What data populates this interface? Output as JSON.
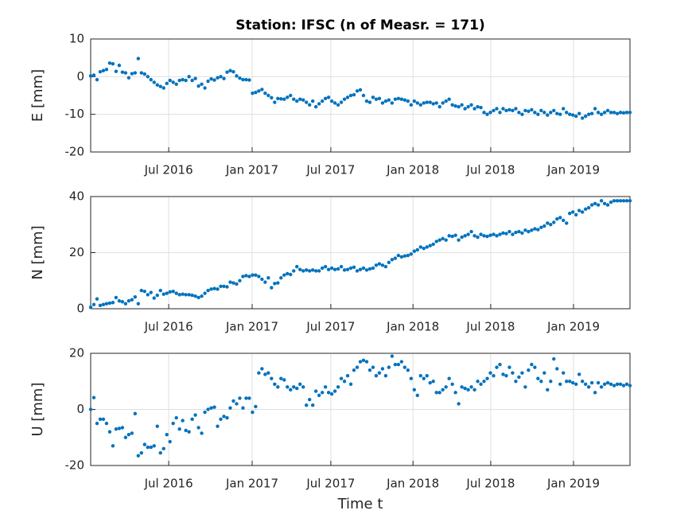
{
  "chart_data": [
    {
      "type": "scatter",
      "title": "Station: IFSC (n of Measr. = 171)",
      "y_label": "E [mm]",
      "color": "#0072bd",
      "grid": true,
      "x": [
        0,
        1,
        2,
        3,
        4,
        5,
        6,
        7,
        8,
        9,
        10,
        11,
        12,
        13,
        14,
        15,
        16,
        17,
        18,
        19,
        20,
        21,
        22,
        23,
        24,
        25,
        26,
        27,
        28,
        29,
        30,
        31,
        32,
        33,
        34,
        35,
        36,
        37,
        38,
        39,
        40,
        41,
        42,
        43,
        44,
        45,
        46,
        47,
        48,
        49,
        50,
        51,
        52,
        53,
        54,
        55,
        56,
        57,
        58,
        59,
        60,
        61,
        62,
        63,
        64,
        65,
        66,
        67,
        68,
        69,
        70,
        71,
        72,
        73,
        74,
        75,
        76,
        77,
        78,
        79,
        80,
        81,
        82,
        83,
        84,
        85,
        86,
        87,
        88,
        89,
        90,
        91,
        92,
        93,
        94,
        95,
        96,
        97,
        98,
        99,
        100,
        101,
        102,
        103,
        104,
        105,
        106,
        107,
        108,
        109,
        110,
        111,
        112,
        113,
        114,
        115,
        116,
        117,
        118,
        119,
        120,
        121,
        122,
        123,
        124,
        125,
        126,
        127,
        128,
        129,
        130,
        131,
        132,
        133,
        134,
        135,
        136,
        137,
        138,
        139,
        140,
        141,
        142,
        143,
        144,
        145,
        146,
        147,
        148,
        149,
        150,
        151,
        152,
        153,
        154,
        155,
        156,
        157,
        158,
        159,
        160,
        161,
        162,
        163,
        164,
        165,
        166,
        167,
        168,
        169,
        170
      ],
      "values": [
        0.2,
        0.4,
        -0.8,
        1.3,
        1.6,
        1.9,
        3.6,
        3.4,
        1.4,
        3.0,
        1.2,
        1.0,
        -0.3,
        0.8,
        1.0,
        4.8,
        1.0,
        0.7,
        0.0,
        -0.8,
        -1.5,
        -2.2,
        -2.6,
        -3.0,
        -1.8,
        -1.0,
        -1.5,
        -2.0,
        -1.0,
        -0.8,
        -1.0,
        0.0,
        -1.0,
        -0.5,
        -2.5,
        -2.0,
        -3.0,
        -1.2,
        -0.6,
        -0.9,
        -0.3,
        0.0,
        -0.5,
        1.2,
        1.6,
        1.3,
        0.2,
        -0.4,
        -0.8,
        -0.8,
        -0.9,
        -4.4,
        -4.2,
        -3.8,
        -3.4,
        -4.4,
        -5.0,
        -5.6,
        -6.8,
        -5.8,
        -5.9,
        -6.0,
        -5.5,
        -5.0,
        -6.0,
        -6.5,
        -6.0,
        -6.2,
        -6.8,
        -7.5,
        -6.5,
        -8.0,
        -7.2,
        -6.5,
        -5.8,
        -5.5,
        -6.5,
        -7.0,
        -7.5,
        -6.8,
        -6.0,
        -5.5,
        -5.0,
        -4.8,
        -3.8,
        -3.5,
        -5.0,
        -6.5,
        -6.8,
        -5.5,
        -6.0,
        -5.8,
        -7.0,
        -6.5,
        -6.2,
        -7.0,
        -6.0,
        -5.8,
        -6.0,
        -6.2,
        -6.5,
        -7.5,
        -6.5,
        -7.0,
        -7.5,
        -7.0,
        -6.8,
        -6.8,
        -7.2,
        -7.0,
        -8.0,
        -7.0,
        -6.5,
        -6.0,
        -7.5,
        -7.8,
        -8.0,
        -7.5,
        -8.5,
        -8.0,
        -7.5,
        -8.5,
        -8.0,
        -8.2,
        -9.5,
        -10.0,
        -9.5,
        -9.0,
        -8.5,
        -9.5,
        -8.5,
        -9.0,
        -8.8,
        -9.0,
        -8.5,
        -9.5,
        -10.0,
        -9.0,
        -9.2,
        -8.8,
        -9.5,
        -10.0,
        -9.0,
        -9.5,
        -10.2,
        -9.5,
        -9.0,
        -9.8,
        -10.0,
        -8.5,
        -9.5,
        -10.0,
        -10.2,
        -10.5,
        -9.8,
        -11.0,
        -10.5,
        -10.0,
        -9.8,
        -8.5,
        -9.5,
        -10.0,
        -9.5,
        -9.0,
        -9.5,
        -9.5,
        -9.8,
        -9.5,
        -9.6,
        -9.5,
        -9.5
      ],
      "xlim": [
        0,
        170
      ],
      "ylim": [
        -20,
        10
      ],
      "yticks": [
        -20,
        -10,
        0,
        10
      ],
      "xticks": [
        {
          "value": 24.6,
          "label": "Jul 2016"
        },
        {
          "value": 50.9,
          "label": "Jan 2017"
        },
        {
          "value": 75.7,
          "label": "Jul 2017"
        },
        {
          "value": 101.6,
          "label": "Jan 2018"
        },
        {
          "value": 126.1,
          "label": "Jul 2018"
        },
        {
          "value": 152.2,
          "label": "Jan 2019"
        }
      ]
    },
    {
      "type": "scatter",
      "y_label": "N [mm]",
      "color": "#0072bd",
      "grid": true,
      "x": [
        0,
        1,
        2,
        3,
        4,
        5,
        6,
        7,
        8,
        9,
        10,
        11,
        12,
        13,
        14,
        15,
        16,
        17,
        18,
        19,
        20,
        21,
        22,
        23,
        24,
        25,
        26,
        27,
        28,
        29,
        30,
        31,
        32,
        33,
        34,
        35,
        36,
        37,
        38,
        39,
        40,
        41,
        42,
        43,
        44,
        45,
        46,
        47,
        48,
        49,
        50,
        51,
        52,
        53,
        54,
        55,
        56,
        57,
        58,
        59,
        60,
        61,
        62,
        63,
        64,
        65,
        66,
        67,
        68,
        69,
        70,
        71,
        72,
        73,
        74,
        75,
        76,
        77,
        78,
        79,
        80,
        81,
        82,
        83,
        84,
        85,
        86,
        87,
        88,
        89,
        90,
        91,
        92,
        93,
        94,
        95,
        96,
        97,
        98,
        99,
        100,
        101,
        102,
        103,
        104,
        105,
        106,
        107,
        108,
        109,
        110,
        111,
        112,
        113,
        114,
        115,
        116,
        117,
        118,
        119,
        120,
        121,
        122,
        123,
        124,
        125,
        126,
        127,
        128,
        129,
        130,
        131,
        132,
        133,
        134,
        135,
        136,
        137,
        138,
        139,
        140,
        141,
        142,
        143,
        144,
        145,
        146,
        147,
        148,
        149,
        150,
        151,
        152,
        153,
        154,
        155,
        156,
        157,
        158,
        159,
        160,
        161,
        162,
        163,
        164,
        165,
        166,
        167,
        168,
        169,
        170
      ],
      "values": [
        0.5,
        1.5,
        3.5,
        1.2,
        1.5,
        1.8,
        2.0,
        2.2,
        4.0,
        2.8,
        2.5,
        1.8,
        2.8,
        3.2,
        4.2,
        1.8,
        6.5,
        6.2,
        5.0,
        5.8,
        3.8,
        4.8,
        6.5,
        5.2,
        5.5,
        6.0,
        6.2,
        5.5,
        5.0,
        5.2,
        5.0,
        5.0,
        4.8,
        4.5,
        4.0,
        4.5,
        5.5,
        6.5,
        7.0,
        7.2,
        7.0,
        8.0,
        8.0,
        7.8,
        9.5,
        9.2,
        8.8,
        10.0,
        11.5,
        11.8,
        11.5,
        12.0,
        12.0,
        11.5,
        10.5,
        9.5,
        11.0,
        7.5,
        9.0,
        9.2,
        11.0,
        12.0,
        12.5,
        12.2,
        13.5,
        15.0,
        14.0,
        13.5,
        13.8,
        13.5,
        13.8,
        13.5,
        13.5,
        14.5,
        15.0,
        14.0,
        14.5,
        14.0,
        14.2,
        15.0,
        13.8,
        14.0,
        14.5,
        14.8,
        13.5,
        14.0,
        14.5,
        13.8,
        14.2,
        14.5,
        15.5,
        16.0,
        15.5,
        15.0,
        16.5,
        17.5,
        18.0,
        19.0,
        18.5,
        18.8,
        19.0,
        19.5,
        20.5,
        21.0,
        22.0,
        21.5,
        22.0,
        22.5,
        23.0,
        24.0,
        24.5,
        25.0,
        24.5,
        26.0,
        25.8,
        26.2,
        24.5,
        25.5,
        26.0,
        26.5,
        27.5,
        26.0,
        25.5,
        26.5,
        26.0,
        25.8,
        26.2,
        26.5,
        26.0,
        26.5,
        27.0,
        26.8,
        27.5,
        26.5,
        27.2,
        27.5,
        27.0,
        28.0,
        27.5,
        28.0,
        28.5,
        28.2,
        29.0,
        29.5,
        30.5,
        30.0,
        30.8,
        32.0,
        32.5,
        31.5,
        30.5,
        34.0,
        34.5,
        33.5,
        35.0,
        34.5,
        35.5,
        36.0,
        37.0,
        37.5,
        37.0,
        38.5,
        37.5,
        37.0,
        38.0,
        38.5,
        38.5,
        38.5,
        38.5,
        38.5,
        38.5
      ],
      "xlim": [
        0,
        170
      ],
      "ylim": [
        0,
        40
      ],
      "yticks": [
        0,
        20,
        40
      ],
      "xticks": [
        {
          "value": 24.6,
          "label": "Jul 2016"
        },
        {
          "value": 50.9,
          "label": "Jan 2017"
        },
        {
          "value": 75.7,
          "label": "Jul 2017"
        },
        {
          "value": 101.6,
          "label": "Jan 2018"
        },
        {
          "value": 126.1,
          "label": "Jul 2018"
        },
        {
          "value": 152.2,
          "label": "Jan 2019"
        }
      ]
    },
    {
      "type": "scatter",
      "y_label": "U [mm]",
      "x_label": "Time t",
      "color": "#0072bd",
      "grid": true,
      "x": [
        0,
        1,
        2,
        3,
        4,
        5,
        6,
        7,
        8,
        9,
        10,
        11,
        12,
        13,
        14,
        15,
        16,
        17,
        18,
        19,
        20,
        21,
        22,
        23,
        24,
        25,
        26,
        27,
        28,
        29,
        30,
        31,
        32,
        33,
        34,
        35,
        36,
        37,
        38,
        39,
        40,
        41,
        42,
        43,
        44,
        45,
        46,
        47,
        48,
        49,
        50,
        51,
        52,
        53,
        54,
        55,
        56,
        57,
        58,
        59,
        60,
        61,
        62,
        63,
        64,
        65,
        66,
        67,
        68,
        69,
        70,
        71,
        72,
        73,
        74,
        75,
        76,
        77,
        78,
        79,
        80,
        81,
        82,
        83,
        84,
        85,
        86,
        87,
        88,
        89,
        90,
        91,
        92,
        93,
        94,
        95,
        96,
        97,
        98,
        99,
        100,
        101,
        102,
        103,
        104,
        105,
        106,
        107,
        108,
        109,
        110,
        111,
        112,
        113,
        114,
        115,
        116,
        117,
        118,
        119,
        120,
        121,
        122,
        123,
        124,
        125,
        126,
        127,
        128,
        129,
        130,
        131,
        132,
        133,
        134,
        135,
        136,
        137,
        138,
        139,
        140,
        141,
        142,
        143,
        144,
        145,
        146,
        147,
        148,
        149,
        150,
        151,
        152,
        153,
        154,
        155,
        156,
        157,
        158,
        159,
        160,
        161,
        162,
        163,
        164,
        165,
        166,
        167,
        168,
        169,
        170
      ],
      "values": [
        0,
        4.2,
        -5,
        -3.5,
        -3.5,
        -5,
        -8,
        -13,
        -7,
        -6.8,
        -6.5,
        -10,
        -9,
        -8.5,
        -1.5,
        -16.5,
        -15.5,
        -12.5,
        -13.5,
        -13.5,
        -13,
        -6,
        -15.5,
        -14,
        -9,
        -11.5,
        -5,
        -3,
        -7,
        -4,
        -7.5,
        -8,
        -3.5,
        -2,
        -6.5,
        -8.5,
        -1,
        0,
        0.5,
        0.8,
        -6,
        -3.5,
        -2.5,
        -3,
        0.5,
        3,
        2,
        4,
        0.5,
        4,
        4,
        -1,
        1,
        13,
        14.5,
        12.5,
        13,
        11,
        9,
        8,
        11,
        10.5,
        8,
        7,
        8,
        7.5,
        9,
        8,
        1.5,
        3.5,
        1.5,
        6.5,
        5,
        6,
        8,
        6,
        5.5,
        6.5,
        8,
        11,
        10,
        12,
        9,
        14,
        15,
        17,
        17.5,
        17,
        14,
        15,
        12,
        13,
        14.5,
        12,
        15,
        19,
        16,
        16,
        17,
        15,
        14,
        11,
        7,
        5,
        12,
        11,
        12,
        9.5,
        10,
        6,
        6,
        7,
        8,
        11,
        9,
        6,
        2,
        8,
        7.5,
        7,
        8,
        7,
        10,
        9,
        10,
        11,
        13,
        12,
        15,
        16,
        12.5,
        12,
        15,
        13,
        10,
        11.5,
        13,
        8,
        14,
        16,
        15,
        11,
        10,
        13,
        7,
        10,
        18,
        14.5,
        9,
        13,
        10,
        10,
        9.5,
        9,
        12.5,
        10,
        9,
        8,
        9.5,
        6,
        9.5,
        8,
        9,
        9.5,
        9,
        8.5,
        9,
        9,
        8.5,
        9,
        8.5
      ],
      "xlim": [
        0,
        170
      ],
      "ylim": [
        -20,
        20
      ],
      "yticks": [
        -20,
        0,
        20
      ],
      "xticks": [
        {
          "value": 24.6,
          "label": "Jul 2016"
        },
        {
          "value": 50.9,
          "label": "Jan 2017"
        },
        {
          "value": 75.7,
          "label": "Jul 2017"
        },
        {
          "value": 101.6,
          "label": "Jan 2018"
        },
        {
          "value": 126.1,
          "label": "Jul 2018"
        },
        {
          "value": 152.2,
          "label": "Jan 2019"
        }
      ]
    }
  ]
}
